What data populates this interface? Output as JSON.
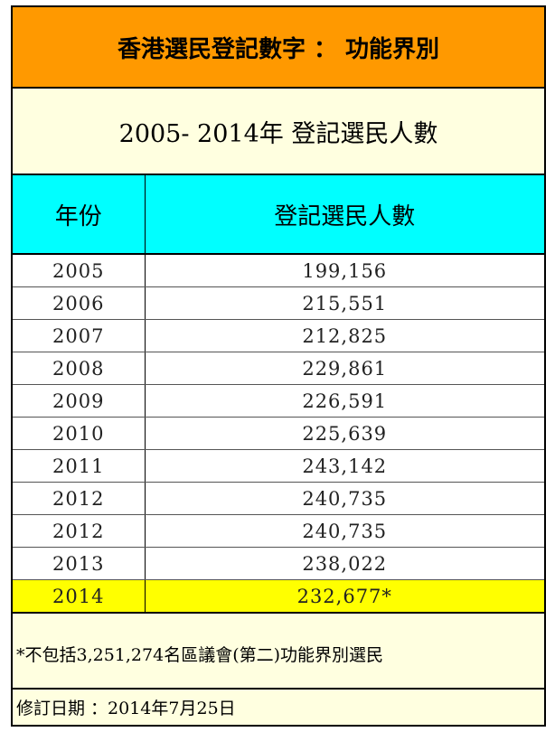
{
  "title": "香港選民登記數字 ： 功能界別",
  "subtitle": "2005- 2014年  登記選民人數",
  "chart_data": {
    "type": "table",
    "columns": [
      "年份",
      "登記選民人數"
    ],
    "rows": [
      {
        "year": "2005",
        "voters": "199,156"
      },
      {
        "year": "2006",
        "voters": "215,551"
      },
      {
        "year": "2007",
        "voters": "212,825"
      },
      {
        "year": "2008",
        "voters": "229,861"
      },
      {
        "year": "2009",
        "voters": "226,591"
      },
      {
        "year": "2010",
        "voters": "225,639"
      },
      {
        "year": "2011",
        "voters": "243,142"
      },
      {
        "year": "2012",
        "voters": "240,735"
      },
      {
        "year": "2012",
        "voters": "240,735"
      },
      {
        "year": "2013",
        "voters": "238,022"
      },
      {
        "year": "2014",
        "voters": "232,677*"
      }
    ],
    "highlight_row": 10,
    "highlight_color": "#ffff00"
  },
  "colors": {
    "title_bg": "#ff9900",
    "header_bg": "#00ffff",
    "panel_bg": "#ffffe0"
  },
  "footnote": "*不包括3,251,274名區議會(第二)功能界別選民",
  "revised": "修訂日期 ：2014年7月25日"
}
